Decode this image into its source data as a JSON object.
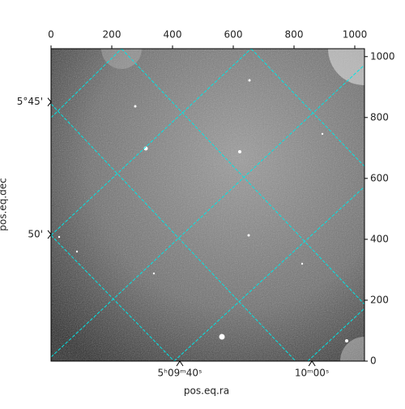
{
  "chart_data": {
    "type": "image",
    "xlabel": "pos.eq.ra",
    "ylabel": "pos.eq.dec",
    "xlim": [
      0,
      1032
    ],
    "ylim": [
      0,
      1026
    ],
    "xticks": [
      0,
      200,
      400,
      600,
      800,
      1000
    ],
    "yticks": [
      0,
      200,
      400,
      600,
      800,
      1000
    ],
    "ra_ticks": [
      {
        "value": 424,
        "label": "5ʰ09ᵐ40ˢ"
      },
      {
        "value": 859,
        "label": "10ᵐ00ˢ"
      }
    ],
    "dec_ticks": [
      {
        "value": 851,
        "label": "5°45'"
      },
      {
        "value": 416,
        "label": "50'"
      }
    ],
    "grid_color": "#00e5e5"
  }
}
